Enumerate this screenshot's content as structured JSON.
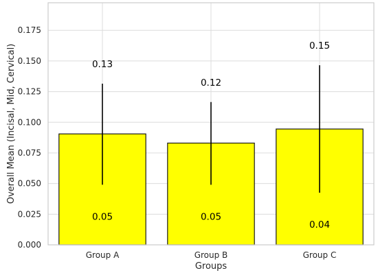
{
  "chart_data": {
    "type": "bar",
    "categories": [
      "Group A",
      "Group B",
      "Group C"
    ],
    "values": [
      0.0905,
      0.083,
      0.0945
    ],
    "error_bars": {
      "lower": [
        0.049,
        0.049,
        0.0425
      ],
      "upper": [
        0.1315,
        0.1165,
        0.1465
      ]
    },
    "labels_above": [
      "0.13",
      "0.12",
      "0.15"
    ],
    "labels_inside": [
      "0.05",
      "0.05",
      "0.04"
    ],
    "xlabel": "Groups",
    "ylabel": "Overall Mean (Incisal, Mid, Cervical)",
    "ylim": [
      0,
      0.1975
    ],
    "yticks": [
      0.0,
      0.025,
      0.05,
      0.075,
      0.1,
      0.125,
      0.15,
      0.175
    ],
    "ytick_labels": [
      "0.000",
      "0.025",
      "0.050",
      "0.075",
      "0.100",
      "0.125",
      "0.150",
      "0.175"
    ],
    "grid": true,
    "colors": {
      "bar_fill": "#ffff00",
      "bar_edge": "#1a1a1a",
      "error_bar": "#000000",
      "grid": "#dcdcdc",
      "axes_edge": "#cccccc"
    }
  }
}
